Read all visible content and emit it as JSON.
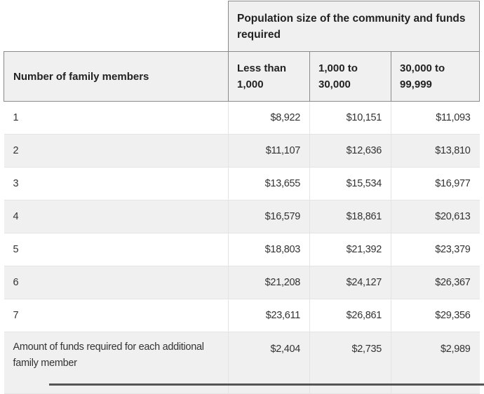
{
  "table": {
    "group_header": "Population size of the community and funds required",
    "row_header": "Number of family members",
    "columns": [
      "Less than 1,000",
      "1,000 to 30,000",
      "30,000 to 99,999"
    ],
    "rows": [
      {
        "label": "1",
        "values": [
          "$8,922",
          "$10,151",
          "$11,093"
        ]
      },
      {
        "label": "2",
        "values": [
          "$11,107",
          "$12,636",
          "$13,810"
        ]
      },
      {
        "label": "3",
        "values": [
          "$13,655",
          "$15,534",
          "$16,977"
        ]
      },
      {
        "label": "4",
        "values": [
          "$16,579",
          "$18,861",
          "$20,613"
        ]
      },
      {
        "label": "5",
        "values": [
          "$18,803",
          "$21,392",
          "$23,379"
        ]
      },
      {
        "label": "6",
        "values": [
          "$21,208",
          "$24,127",
          "$26,367"
        ]
      },
      {
        "label": "7",
        "values": [
          "$23,611",
          "$26,861",
          "$29,356"
        ]
      },
      {
        "label": "Amount of funds required for each additional family member",
        "values": [
          "$2,404",
          "$2,735",
          "$2,989"
        ]
      }
    ]
  }
}
